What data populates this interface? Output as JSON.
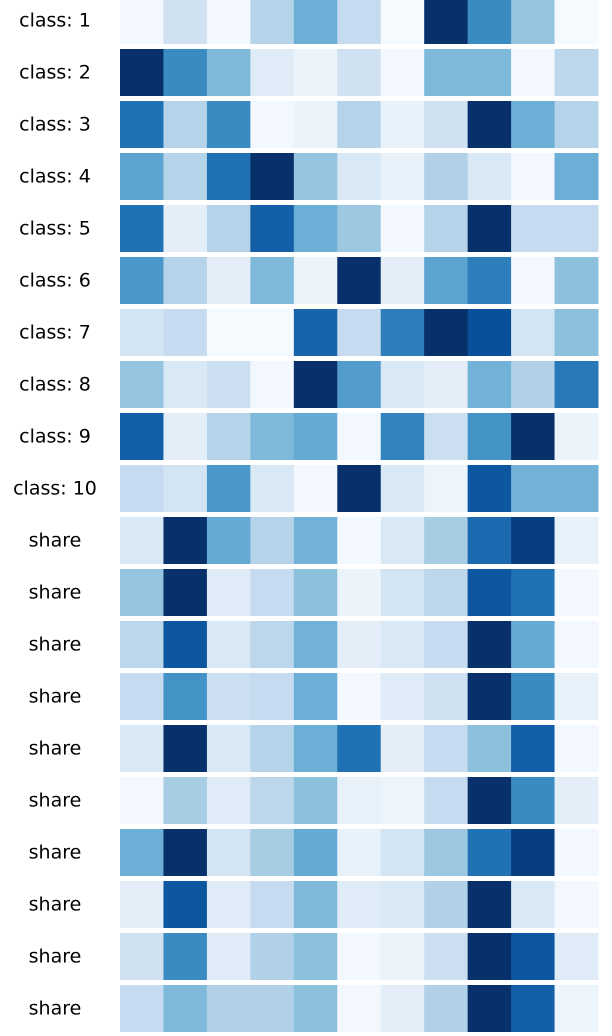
{
  "chart_data": {
    "type": "heatmap",
    "colormap": "Blues",
    "title": "",
    "xlabel": "",
    "ylabel": "",
    "legend": false,
    "grid": false,
    "columns": 11,
    "rows": [
      {
        "label": "class: 1",
        "values": [
          0.02,
          0.2,
          0.02,
          0.3,
          0.5,
          0.25,
          0.01,
          1.0,
          0.65,
          0.4,
          0.01
        ]
      },
      {
        "label": "class: 2",
        "values": [
          1.0,
          0.65,
          0.45,
          0.12,
          0.06,
          0.2,
          0.02,
          0.45,
          0.45,
          0.02,
          0.28
        ]
      },
      {
        "label": "class: 3",
        "values": [
          0.75,
          0.3,
          0.65,
          0.02,
          0.06,
          0.3,
          0.08,
          0.2,
          1.0,
          0.5,
          0.3
        ]
      },
      {
        "label": "class: 4",
        "values": [
          0.55,
          0.3,
          0.75,
          1.0,
          0.4,
          0.15,
          0.08,
          0.32,
          0.15,
          0.02,
          0.5
        ]
      },
      {
        "label": "class: 5",
        "values": [
          0.75,
          0.1,
          0.3,
          0.82,
          0.5,
          0.38,
          0.02,
          0.3,
          1.0,
          0.25,
          0.25
        ]
      },
      {
        "label": "class: 6",
        "values": [
          0.6,
          0.3,
          0.1,
          0.45,
          0.06,
          1.0,
          0.1,
          0.55,
          0.7,
          0.02,
          0.42
        ]
      },
      {
        "label": "class: 7",
        "values": [
          0.18,
          0.25,
          0.01,
          0.01,
          0.8,
          0.25,
          0.7,
          1.0,
          0.88,
          0.18,
          0.42
        ]
      },
      {
        "label": "class: 8",
        "values": [
          0.4,
          0.15,
          0.22,
          0.02,
          1.0,
          0.58,
          0.15,
          0.1,
          0.48,
          0.32,
          0.72
        ]
      },
      {
        "label": "class: 9",
        "values": [
          0.82,
          0.1,
          0.3,
          0.45,
          0.52,
          0.02,
          0.68,
          0.22,
          0.62,
          1.0,
          0.06
        ]
      },
      {
        "label": "class: 10",
        "values": [
          0.25,
          0.18,
          0.6,
          0.15,
          0.02,
          1.0,
          0.15,
          0.05,
          0.85,
          0.48,
          0.48
        ]
      },
      {
        "label": "share",
        "values": [
          0.15,
          1.0,
          0.52,
          0.3,
          0.48,
          0.02,
          0.15,
          0.35,
          0.78,
          0.95,
          0.08
        ]
      },
      {
        "label": "share",
        "values": [
          0.4,
          1.0,
          0.12,
          0.25,
          0.42,
          0.06,
          0.18,
          0.28,
          0.85,
          0.75,
          0.02
        ]
      },
      {
        "label": "share",
        "values": [
          0.28,
          0.85,
          0.15,
          0.28,
          0.48,
          0.1,
          0.15,
          0.25,
          1.0,
          0.52,
          0.02
        ]
      },
      {
        "label": "share",
        "values": [
          0.25,
          0.62,
          0.22,
          0.25,
          0.5,
          0.02,
          0.12,
          0.2,
          1.0,
          0.65,
          0.08
        ]
      },
      {
        "label": "share",
        "values": [
          0.15,
          1.0,
          0.15,
          0.3,
          0.5,
          0.75,
          0.1,
          0.25,
          0.42,
          0.82,
          0.02
        ]
      },
      {
        "label": "share",
        "values": [
          0.02,
          0.35,
          0.12,
          0.28,
          0.42,
          0.08,
          0.05,
          0.25,
          1.0,
          0.65,
          0.1
        ]
      },
      {
        "label": "share",
        "values": [
          0.5,
          1.0,
          0.18,
          0.35,
          0.52,
          0.08,
          0.18,
          0.38,
          0.75,
          0.95,
          0.02
        ]
      },
      {
        "label": "share",
        "values": [
          0.1,
          0.85,
          0.12,
          0.25,
          0.45,
          0.12,
          0.15,
          0.32,
          1.0,
          0.15,
          0.02
        ]
      },
      {
        "label": "share",
        "values": [
          0.2,
          0.65,
          0.12,
          0.32,
          0.42,
          0.02,
          0.06,
          0.22,
          1.0,
          0.85,
          0.12
        ]
      },
      {
        "label": "share",
        "values": [
          0.25,
          0.45,
          0.32,
          0.32,
          0.42,
          0.02,
          0.1,
          0.32,
          1.0,
          0.82,
          0.05
        ]
      }
    ]
  }
}
